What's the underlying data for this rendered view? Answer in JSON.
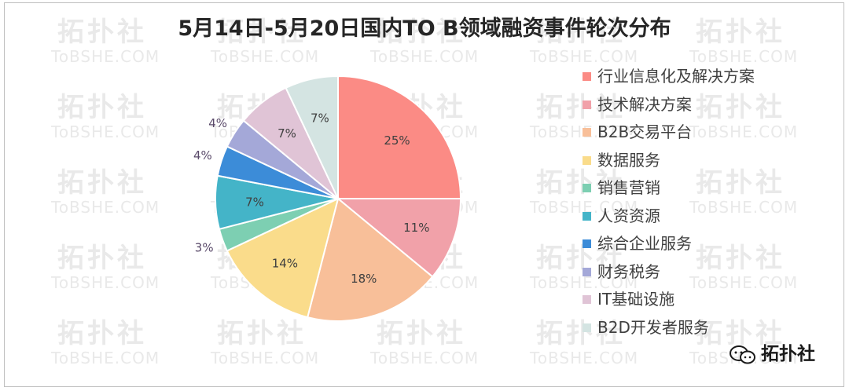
{
  "title": "5月14日-5月20日国内TO B领域融资事件轮次分布",
  "watermark": {
    "text_cn": "拓扑社",
    "text_en": "ToBSHE.COM"
  },
  "brand": {
    "name": "拓扑社",
    "icon": "wechat-bubble-icon"
  },
  "chart_data": {
    "type": "pie",
    "title": "5月14日-5月20日国内TO B领域融资事件轮次分布",
    "slices": [
      {
        "label": "行业信息化及解决方案",
        "value": 25,
        "value_label": "25%",
        "color": "#fb8b85"
      },
      {
        "label": "技术解决方案",
        "value": 11,
        "value_label": "11%",
        "color": "#f1a1a9"
      },
      {
        "label": "B2B交易平台",
        "value": 18,
        "value_label": "18%",
        "color": "#f8bf99"
      },
      {
        "label": "数据服务",
        "value": 14,
        "value_label": "14%",
        "color": "#fadc8b"
      },
      {
        "label": "销售营销",
        "value": 3,
        "value_label": "3%",
        "color": "#7dcfb2"
      },
      {
        "label": "人资资源",
        "value": 7,
        "value_label": "7%",
        "color": "#44b4c8"
      },
      {
        "label": "综合企业服务",
        "value": 4,
        "value_label": "4%",
        "color": "#3c8cd8"
      },
      {
        "label": "财务税务",
        "value": 4,
        "value_label": "4%",
        "color": "#a4a8d8"
      },
      {
        "label": "IT基础设施",
        "value": 7,
        "value_label": "7%",
        "color": "#e0c4d6"
      },
      {
        "label": "B2D开发者服务",
        "value": 7,
        "value_label": "7%",
        "color": "#d4e4e2"
      }
    ],
    "legend_position": "right",
    "label_color": "#404040",
    "outside_label_color": "#5a4a6a"
  }
}
